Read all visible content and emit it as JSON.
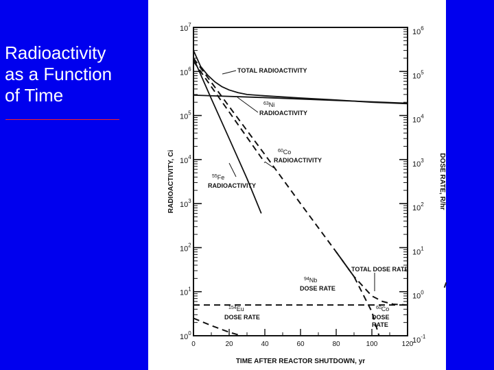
{
  "slide": {
    "title_lines": [
      "Radioactivity",
      "as a Function",
      "of Time"
    ],
    "colors": {
      "background": "#0000ee",
      "title_text": "#ffffff",
      "rule": "#ff2020",
      "panel": "#ffffff",
      "ink": "#111111"
    }
  },
  "chart_data": {
    "type": "line",
    "xlabel": "TIME AFTER REACTOR SHUTDOWN, yr",
    "ylabel_left": "RADIOACTIVITY, Ci",
    "ylabel_right": "DOSE RATE, R/hr",
    "xlim": [
      0,
      120
    ],
    "x_ticks": [
      "0",
      "20",
      "40",
      "60",
      "80",
      "100",
      "120"
    ],
    "y_left_log": true,
    "y_left_lim": [
      1,
      10000000
    ],
    "y_left_ticks": [
      {
        "base": "10",
        "exp": "0"
      },
      {
        "base": "10",
        "exp": "1"
      },
      {
        "base": "10",
        "exp": "2"
      },
      {
        "base": "10",
        "exp": "3"
      },
      {
        "base": "10",
        "exp": "4"
      },
      {
        "base": "10",
        "exp": "5"
      },
      {
        "base": "10",
        "exp": "6"
      },
      {
        "base": "10",
        "exp": "7"
      }
    ],
    "y_right_log": true,
    "y_right_lim": [
      0.1,
      1000000
    ],
    "y_right_ticks": [
      {
        "base": "10",
        "exp": "-1"
      },
      {
        "base": "10",
        "exp": "0"
      },
      {
        "base": "10",
        "exp": "1"
      },
      {
        "base": "10",
        "exp": "2"
      },
      {
        "base": "10",
        "exp": "3"
      },
      {
        "base": "10",
        "exp": "4"
      },
      {
        "base": "10",
        "exp": "5"
      },
      {
        "base": "10",
        "exp": "6"
      }
    ],
    "grid": false,
    "series": [
      {
        "name": "TOTAL RADIOACTIVITY",
        "axis": "left",
        "style": "solid",
        "x": [
          0,
          4,
          8,
          12,
          16,
          20,
          25,
          30,
          35,
          40,
          60,
          80,
          100,
          120
        ],
        "y": [
          3000000,
          1300000,
          820000,
          580000,
          450000,
          380000,
          330000,
          300000,
          290000,
          280000,
          250000,
          225000,
          200000,
          185000
        ]
      },
      {
        "name": "RADIOACTIVITY",
        "isotope": "63Ni",
        "axis": "left",
        "style": "solid",
        "x": [
          0,
          40,
          80,
          120
        ],
        "y": [
          290000,
          255000,
          220000,
          190000
        ]
      },
      {
        "name": "RADIOACTIVITY",
        "isotope": "55Fe",
        "axis": "left",
        "style": "solid",
        "x": [
          0,
          10,
          20,
          30,
          38
        ],
        "y": [
          2000000,
          240000,
          30000,
          3700,
          600
        ]
      },
      {
        "name": "RADIOACTIVITY",
        "isotope": "60Co",
        "axis": "left",
        "style": "dashed",
        "x": [
          0,
          10,
          20,
          30,
          40
        ],
        "y": [
          1700000,
          450000,
          120000,
          32000,
          8500
        ]
      },
      {
        "name": "TOTAL DOSE RATE",
        "axis": "right",
        "style": "dashed",
        "x": [
          0,
          20,
          40,
          60,
          80,
          90,
          100,
          106,
          112,
          120
        ],
        "y": [
          200000,
          16000,
          1300,
          100,
          8,
          2.2,
          0.8,
          0.6,
          0.52,
          0.5
        ]
      },
      {
        "name": "DOSE RATE",
        "isotope": "94Nb",
        "axis": "right",
        "style": "dashed",
        "x": [
          0,
          120
        ],
        "y": [
          0.5,
          0.5
        ]
      },
      {
        "name": "DOSE RATE",
        "isotope": "154Eu",
        "axis": "right",
        "style": "dashed",
        "x": [
          0,
          10,
          20,
          27
        ],
        "y": [
          0.25,
          0.17,
          0.12,
          0.1
        ]
      },
      {
        "name": "DOSE RATE",
        "isotope": "60Co",
        "axis": "right",
        "style": "dashed",
        "x": [
          80,
          90,
          100,
          104
        ],
        "y": [
          8,
          2.2,
          0.35,
          0.1
        ]
      }
    ],
    "annotations": [
      {
        "id": "total-radioactivity",
        "lines": [
          "TOTAL RADIOACTIVITY"
        ]
      },
      {
        "id": "ni63",
        "sup": "63",
        "sym": "Ni",
        "lines": [
          "RADIOACTIVITY"
        ]
      },
      {
        "id": "co60-act",
        "sup": "60",
        "sym": "Co",
        "lines": [
          "RADIOACTIVITY"
        ]
      },
      {
        "id": "fe55",
        "sup": "55",
        "sym": "Fe",
        "lines": [
          "RADIOACTIVITY"
        ]
      },
      {
        "id": "total-dose",
        "lines": [
          "TOTAL DOSE RATE"
        ]
      },
      {
        "id": "nb94",
        "sup": "94",
        "sym": "Nb",
        "lines": [
          "DOSE RATE"
        ]
      },
      {
        "id": "eu154",
        "sup": "154",
        "sym": "Eu",
        "lines": [
          "DOSE RATE"
        ]
      },
      {
        "id": "co60-dose",
        "sup": "60",
        "sym": "Co",
        "lines": [
          "DOSE",
          "RATE"
        ]
      }
    ]
  }
}
